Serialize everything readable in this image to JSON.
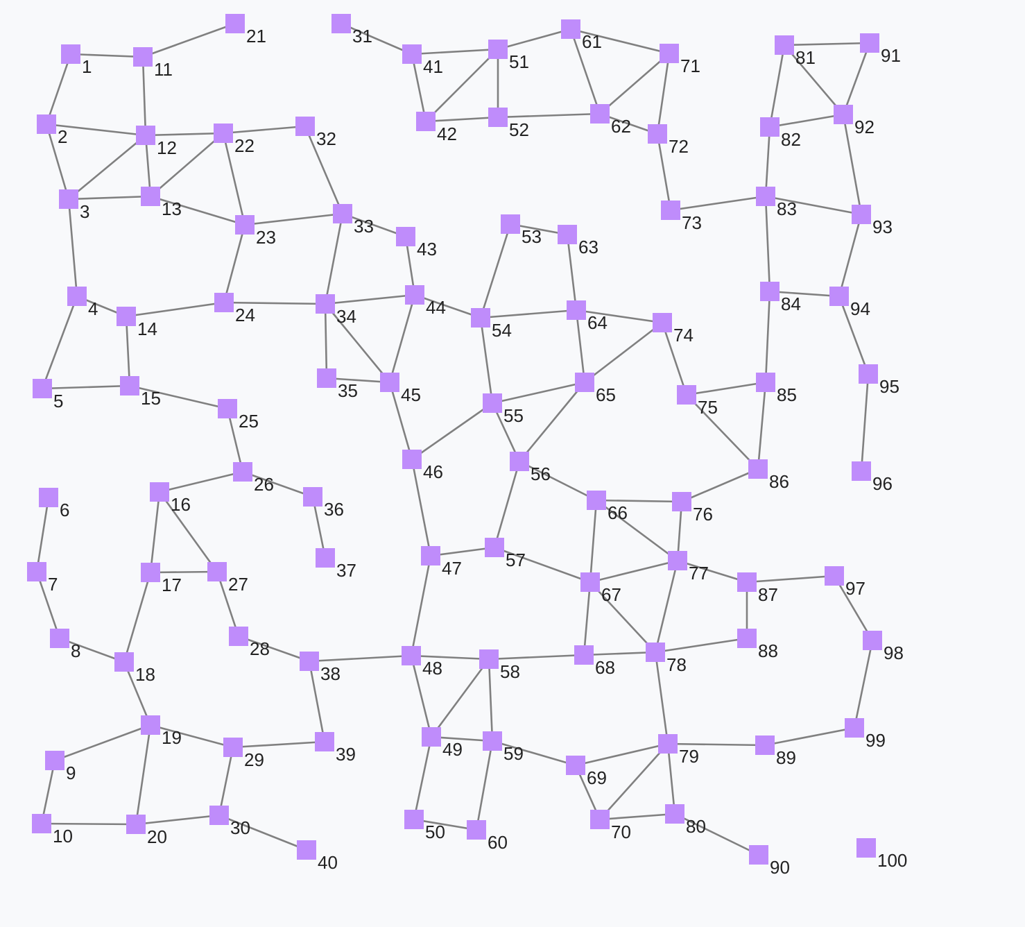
{
  "colors": {
    "background": "#f8f9fb",
    "node_fill": "#bf8cfb",
    "edge_stroke": "#808080",
    "label_text": "#222222"
  },
  "node_shape": "square",
  "nodes": [
    "1",
    "2",
    "3",
    "4",
    "5",
    "6",
    "7",
    "8",
    "9",
    "10",
    "11",
    "12",
    "13",
    "14",
    "15",
    "16",
    "17",
    "18",
    "19",
    "20",
    "21",
    "22",
    "23",
    "24",
    "25",
    "26",
    "27",
    "28",
    "29",
    "30",
    "31",
    "32",
    "33",
    "34",
    "35",
    "36",
    "37",
    "38",
    "39",
    "40",
    "41",
    "42",
    "43",
    "44",
    "45",
    "46",
    "47",
    "48",
    "49",
    "50",
    "51",
    "52",
    "53",
    "54",
    "55",
    "56",
    "57",
    "58",
    "59",
    "60",
    "61",
    "62",
    "63",
    "64",
    "65",
    "66",
    "67",
    "68",
    "69",
    "70",
    "71",
    "72",
    "73",
    "74",
    "75",
    "76",
    "77",
    "78",
    "79",
    "80",
    "81",
    "82",
    "83",
    "84",
    "85",
    "86",
    "87",
    "88",
    "89",
    "90",
    "91",
    "92",
    "93",
    "94",
    "95",
    "96",
    "97",
    "98",
    "99",
    "100"
  ],
  "edges": [
    [
      "1",
      "11"
    ],
    [
      "1",
      "2"
    ],
    [
      "2",
      "12"
    ],
    [
      "2",
      "3"
    ],
    [
      "3",
      "12"
    ],
    [
      "3",
      "13"
    ],
    [
      "3",
      "4"
    ],
    [
      "4",
      "14"
    ],
    [
      "4",
      "5"
    ],
    [
      "5",
      "15"
    ],
    [
      "6",
      "7"
    ],
    [
      "7",
      "8"
    ],
    [
      "8",
      "18"
    ],
    [
      "9",
      "19"
    ],
    [
      "9",
      "10"
    ],
    [
      "10",
      "20"
    ],
    [
      "11",
      "21"
    ],
    [
      "11",
      "12"
    ],
    [
      "12",
      "22"
    ],
    [
      "12",
      "13"
    ],
    [
      "13",
      "22"
    ],
    [
      "13",
      "23"
    ],
    [
      "14",
      "24"
    ],
    [
      "14",
      "15"
    ],
    [
      "15",
      "25"
    ],
    [
      "16",
      "26"
    ],
    [
      "16",
      "17"
    ],
    [
      "16",
      "27"
    ],
    [
      "17",
      "27"
    ],
    [
      "17",
      "18"
    ],
    [
      "18",
      "19"
    ],
    [
      "19",
      "29"
    ],
    [
      "19",
      "20"
    ],
    [
      "20",
      "30"
    ],
    [
      "22",
      "32"
    ],
    [
      "22",
      "23"
    ],
    [
      "23",
      "33"
    ],
    [
      "23",
      "24"
    ],
    [
      "24",
      "34"
    ],
    [
      "25",
      "26"
    ],
    [
      "26",
      "36"
    ],
    [
      "27",
      "28"
    ],
    [
      "28",
      "38"
    ],
    [
      "29",
      "39"
    ],
    [
      "29",
      "30"
    ],
    [
      "30",
      "40"
    ],
    [
      "31",
      "41"
    ],
    [
      "32",
      "33"
    ],
    [
      "33",
      "43"
    ],
    [
      "33",
      "34"
    ],
    [
      "34",
      "44"
    ],
    [
      "34",
      "35"
    ],
    [
      "34",
      "45"
    ],
    [
      "35",
      "45"
    ],
    [
      "36",
      "37"
    ],
    [
      "38",
      "48"
    ],
    [
      "38",
      "39"
    ],
    [
      "41",
      "51"
    ],
    [
      "41",
      "42"
    ],
    [
      "42",
      "51"
    ],
    [
      "42",
      "52"
    ],
    [
      "43",
      "44"
    ],
    [
      "44",
      "54"
    ],
    [
      "44",
      "45"
    ],
    [
      "45",
      "46"
    ],
    [
      "46",
      "55"
    ],
    [
      "46",
      "47"
    ],
    [
      "47",
      "57"
    ],
    [
      "47",
      "48"
    ],
    [
      "48",
      "58"
    ],
    [
      "48",
      "49"
    ],
    [
      "49",
      "58"
    ],
    [
      "49",
      "59"
    ],
    [
      "49",
      "50"
    ],
    [
      "50",
      "60"
    ],
    [
      "51",
      "61"
    ],
    [
      "51",
      "52"
    ],
    [
      "52",
      "62"
    ],
    [
      "53",
      "63"
    ],
    [
      "53",
      "54"
    ],
    [
      "54",
      "64"
    ],
    [
      "54",
      "55"
    ],
    [
      "55",
      "65"
    ],
    [
      "55",
      "56"
    ],
    [
      "56",
      "65"
    ],
    [
      "56",
      "66"
    ],
    [
      "56",
      "57"
    ],
    [
      "57",
      "67"
    ],
    [
      "58",
      "68"
    ],
    [
      "58",
      "59"
    ],
    [
      "59",
      "69"
    ],
    [
      "59",
      "60"
    ],
    [
      "61",
      "71"
    ],
    [
      "61",
      "62"
    ],
    [
      "62",
      "71"
    ],
    [
      "62",
      "72"
    ],
    [
      "63",
      "64"
    ],
    [
      "64",
      "74"
    ],
    [
      "64",
      "65"
    ],
    [
      "65",
      "74"
    ],
    [
      "66",
      "76"
    ],
    [
      "66",
      "77"
    ],
    [
      "66",
      "67"
    ],
    [
      "67",
      "77"
    ],
    [
      "67",
      "78"
    ],
    [
      "67",
      "68"
    ],
    [
      "68",
      "78"
    ],
    [
      "69",
      "79"
    ],
    [
      "69",
      "70"
    ],
    [
      "70",
      "79"
    ],
    [
      "70",
      "80"
    ],
    [
      "71",
      "72"
    ],
    [
      "72",
      "73"
    ],
    [
      "73",
      "83"
    ],
    [
      "74",
      "75"
    ],
    [
      "75",
      "85"
    ],
    [
      "75",
      "86"
    ],
    [
      "76",
      "86"
    ],
    [
      "76",
      "77"
    ],
    [
      "77",
      "87"
    ],
    [
      "77",
      "78"
    ],
    [
      "78",
      "88"
    ],
    [
      "78",
      "79"
    ],
    [
      "79",
      "89"
    ],
    [
      "79",
      "80"
    ],
    [
      "80",
      "90"
    ],
    [
      "81",
      "91"
    ],
    [
      "81",
      "82"
    ],
    [
      "81",
      "92"
    ],
    [
      "82",
      "92"
    ],
    [
      "82",
      "83"
    ],
    [
      "83",
      "93"
    ],
    [
      "83",
      "84"
    ],
    [
      "84",
      "94"
    ],
    [
      "84",
      "85"
    ],
    [
      "85",
      "86"
    ],
    [
      "87",
      "97"
    ],
    [
      "87",
      "88"
    ],
    [
      "89",
      "99"
    ],
    [
      "91",
      "92"
    ],
    [
      "92",
      "93"
    ],
    [
      "93",
      "94"
    ],
    [
      "94",
      "95"
    ],
    [
      "95",
      "96"
    ],
    [
      "97",
      "98"
    ],
    [
      "98",
      "99"
    ]
  ]
}
